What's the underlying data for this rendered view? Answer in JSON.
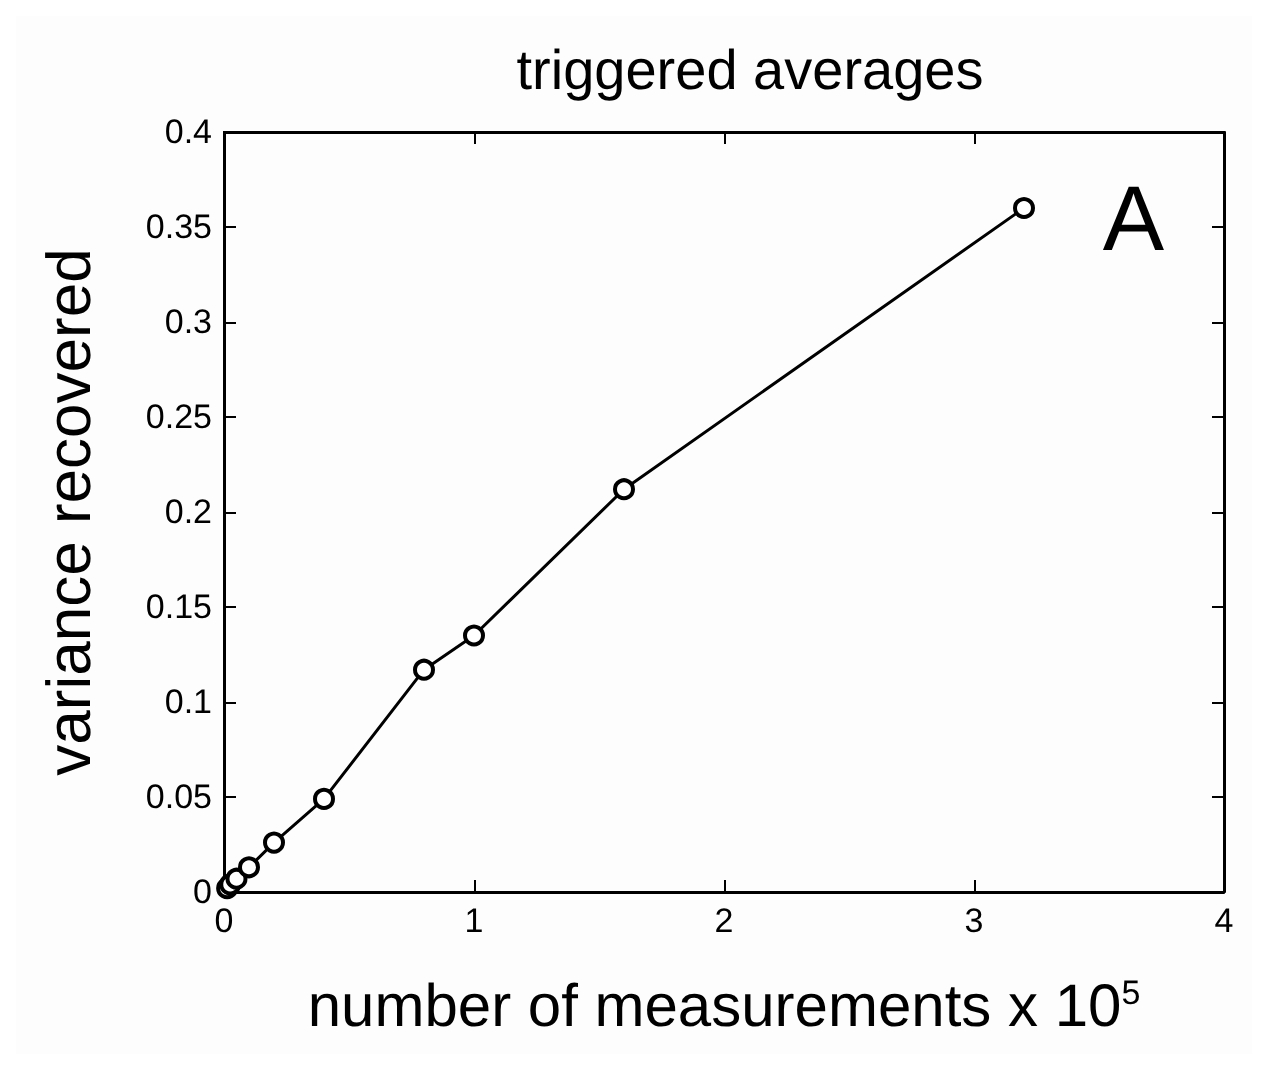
{
  "chart_data": {
    "type": "line",
    "title": "triggered averages",
    "xlabel": "number of measurements x 10$^{5}$",
    "ylabel": "variance recovered",
    "annotations": [
      "A"
    ],
    "x": [
      0.0125,
      0.025,
      0.05,
      0.1,
      0.2,
      0.4,
      0.8,
      1,
      1.6,
      3.2
    ],
    "series": [
      {
        "color": "#000000",
        "values": [
          0.002,
          0.004,
          0.007,
          0.013,
          0.026,
          0.049,
          0.117,
          0.135,
          0.212,
          0.36
        ]
      }
    ],
    "xlim": [
      0,
      4
    ],
    "xticks": [
      0,
      1,
      2,
      3,
      4
    ],
    "ylim": [
      0,
      0.4
    ],
    "yticks": [
      0,
      0.05,
      0.1,
      0.15,
      0.2,
      0.25,
      0.3,
      0.35,
      0.4
    ],
    "marker": "circle",
    "line_style": "solid"
  }
}
